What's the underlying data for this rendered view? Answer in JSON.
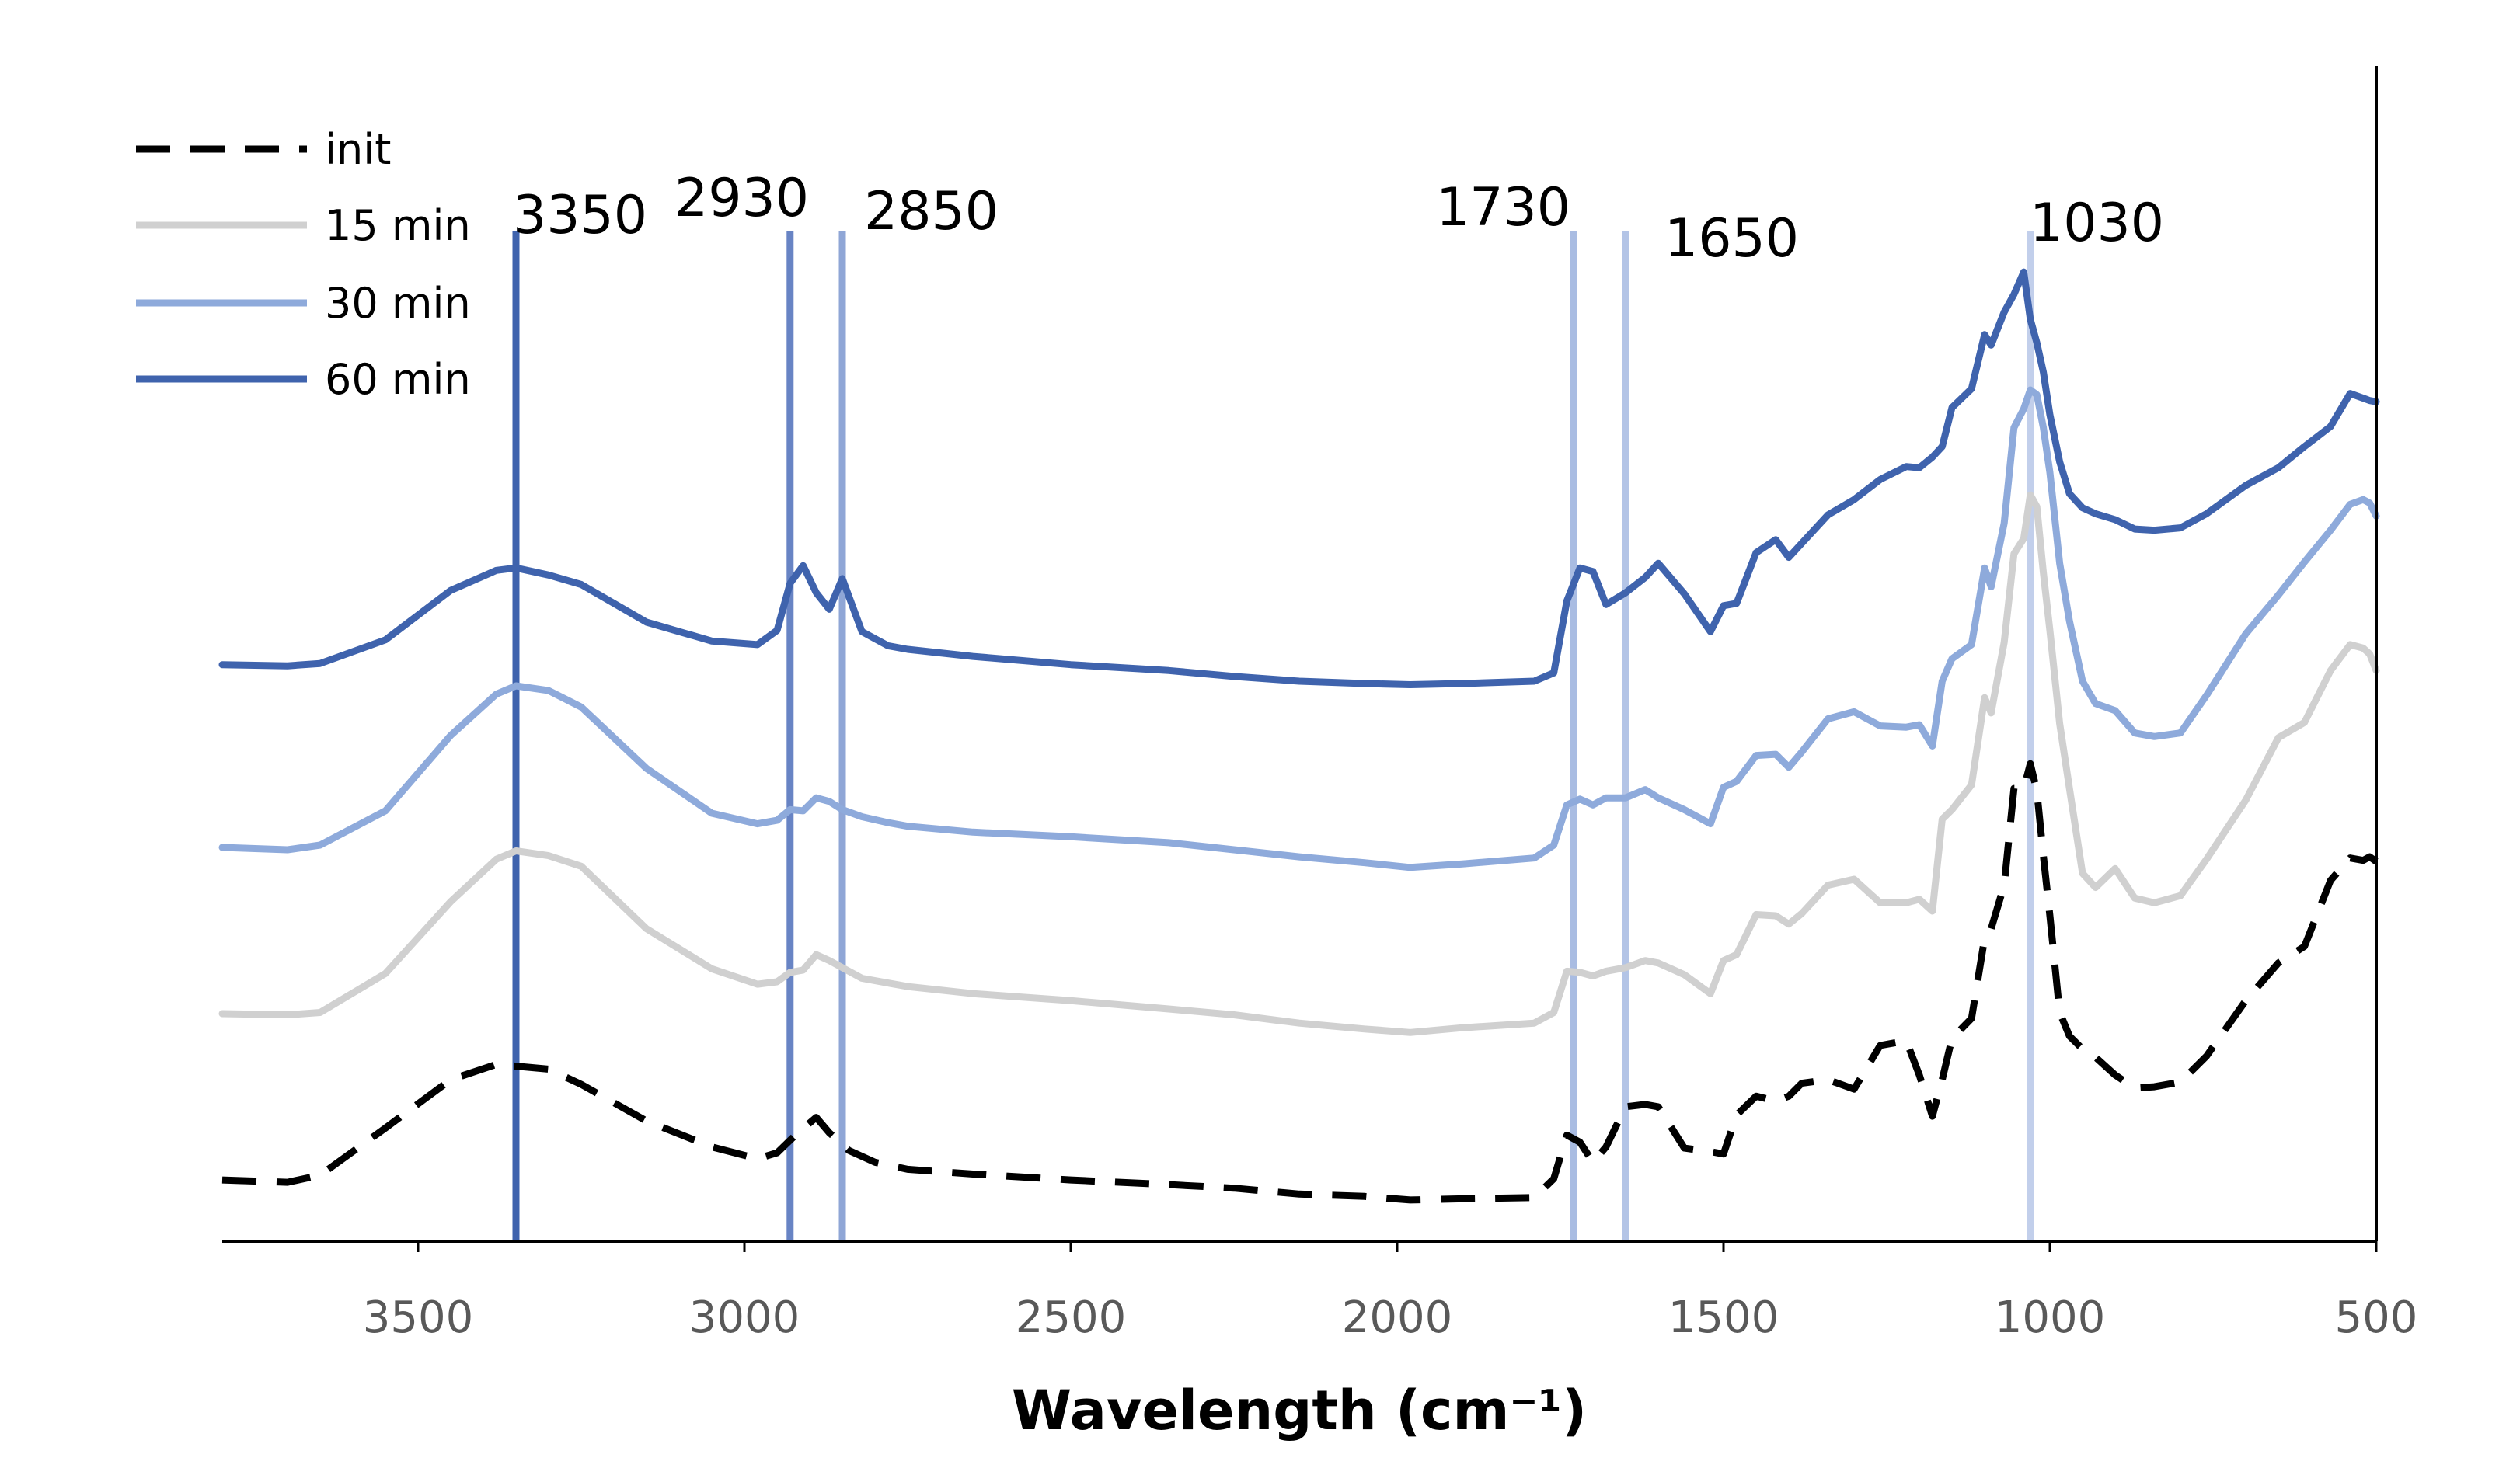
{
  "chart_data": {
    "type": "line",
    "title": "",
    "xlabel": "Wavelength (cm⁻¹)",
    "ylabel": "",
    "xlim": [
      3800,
      500
    ],
    "x_reversed": true,
    "ylim": [
      0,
      100
    ],
    "x_ticks": [
      3500,
      3000,
      2500,
      2000,
      1500,
      1000,
      500
    ],
    "x_tick_labels": [
      "3500",
      "3000",
      "2500",
      "2000",
      "1500",
      "1000",
      "500"
    ],
    "legend_position": "top-left",
    "colors": {
      "init": "#000000",
      "15 min": "#d0d0d0",
      "30 min": "#8eaadb",
      "60 min": "#3f63ad"
    },
    "series": [
      {
        "name": "init",
        "legend_label": "init",
        "style": "dashed",
        "color": "#000000",
        "x": [
          3800,
          3700,
          3650,
          3550,
          3450,
          3380,
          3300,
          3250,
          3150,
          3050,
          2980,
          2950,
          2920,
          2890,
          2870,
          2840,
          2800,
          2750,
          2650,
          2500,
          2350,
          2250,
          2150,
          2050,
          1980,
          1900,
          1790,
          1760,
          1740,
          1720,
          1700,
          1680,
          1650,
          1620,
          1600,
          1560,
          1520,
          1500,
          1480,
          1450,
          1420,
          1400,
          1380,
          1340,
          1300,
          1260,
          1220,
          1200,
          1180,
          1165,
          1150,
          1120,
          1100,
          1090,
          1070,
          1055,
          1040,
          1030,
          1020,
          1010,
          1000,
          985,
          970,
          950,
          930,
          900,
          870,
          840,
          800,
          760,
          700,
          650,
          610,
          570,
          540,
          520,
          510,
          500
        ],
        "values": [
          5.2,
          5.0,
          5.6,
          9.6,
          13.7,
          15.0,
          14.6,
          13.3,
          10.2,
          8.0,
          7.0,
          7.5,
          9.1,
          10.5,
          9.2,
          7.7,
          6.7,
          6.1,
          5.7,
          5.2,
          4.8,
          4.5,
          4.0,
          3.8,
          3.5,
          3.6,
          3.7,
          5.3,
          9.0,
          8.4,
          6.7,
          8.0,
          11.4,
          11.6,
          11.4,
          7.9,
          7.6,
          7.4,
          10.7,
          12.3,
          11.9,
          12.3,
          13.4,
          13.7,
          12.9,
          16.6,
          17.0,
          14.1,
          10.6,
          13.7,
          17.2,
          18.9,
          25.7,
          26.5,
          30.2,
          38.4,
          38.4,
          40.5,
          38.2,
          32.7,
          27.6,
          19.4,
          17.4,
          16.3,
          15.6,
          14.1,
          13.0,
          13.1,
          13.5,
          15.7,
          20.4,
          23.6,
          25.0,
          30.6,
          32.5,
          32.3,
          32.6,
          32.2
        ]
      },
      {
        "name": "15 min",
        "legend_label": "15 min",
        "style": "solid",
        "color": "#d0d0d0",
        "x": [
          3800,
          3700,
          3650,
          3550,
          3450,
          3380,
          3350,
          3300,
          3250,
          3150,
          3050,
          2980,
          2950,
          2930,
          2910,
          2890,
          2870,
          2850,
          2820,
          2780,
          2750,
          2650,
          2500,
          2350,
          2250,
          2150,
          2050,
          1980,
          1900,
          1790,
          1760,
          1740,
          1720,
          1700,
          1680,
          1650,
          1620,
          1600,
          1560,
          1520,
          1500,
          1480,
          1450,
          1420,
          1400,
          1380,
          1340,
          1300,
          1260,
          1220,
          1200,
          1180,
          1165,
          1150,
          1120,
          1100,
          1090,
          1070,
          1055,
          1040,
          1030,
          1020,
          1010,
          1000,
          985,
          970,
          950,
          930,
          900,
          870,
          840,
          800,
          760,
          700,
          650,
          610,
          570,
          540,
          520,
          510,
          500
        ],
        "values": [
          19.3,
          19.2,
          19.4,
          22.7,
          28.8,
          32.4,
          33.1,
          32.7,
          31.8,
          26.5,
          23.1,
          21.8,
          22.0,
          22.8,
          23.0,
          24.3,
          23.8,
          23.2,
          22.3,
          21.9,
          21.6,
          21.0,
          20.4,
          19.7,
          19.2,
          18.5,
          18.0,
          17.7,
          18.1,
          18.5,
          19.4,
          22.9,
          22.8,
          22.5,
          22.9,
          23.2,
          23.8,
          23.6,
          22.6,
          21.0,
          23.8,
          24.3,
          27.7,
          27.6,
          26.9,
          27.8,
          30.2,
          30.7,
          28.7,
          28.7,
          29.0,
          28.0,
          35.8,
          36.6,
          38.7,
          46.1,
          44.8,
          50.8,
          58.3,
          59.6,
          63.3,
          62.3,
          56.7,
          51.8,
          43.9,
          38.4,
          31.2,
          30.0,
          31.6,
          29.1,
          28.7,
          29.3,
          32.4,
          37.4,
          42.7,
          44.0,
          48.4,
          50.6,
          50.3,
          49.8,
          48.4
        ]
      },
      {
        "name": "30 min",
        "legend_label": "30 min",
        "style": "solid",
        "color": "#8eaadb",
        "x": [
          3800,
          3700,
          3650,
          3550,
          3450,
          3380,
          3350,
          3300,
          3250,
          3150,
          3050,
          2980,
          2950,
          2930,
          2910,
          2890,
          2870,
          2850,
          2820,
          2780,
          2750,
          2650,
          2500,
          2350,
          2250,
          2150,
          2050,
          1980,
          1900,
          1790,
          1760,
          1740,
          1720,
          1700,
          1680,
          1650,
          1620,
          1600,
          1560,
          1520,
          1500,
          1480,
          1450,
          1420,
          1400,
          1380,
          1340,
          1300,
          1260,
          1220,
          1200,
          1180,
          1165,
          1150,
          1120,
          1100,
          1090,
          1070,
          1055,
          1040,
          1030,
          1020,
          1010,
          1000,
          985,
          970,
          950,
          930,
          900,
          870,
          840,
          800,
          760,
          700,
          650,
          610,
          570,
          540,
          520,
          510,
          500
        ],
        "values": [
          33.4,
          33.2,
          33.6,
          36.5,
          42.9,
          46.4,
          47.1,
          46.7,
          45.3,
          40.1,
          36.3,
          35.4,
          35.7,
          36.6,
          36.5,
          37.6,
          37.3,
          36.6,
          36.0,
          35.5,
          35.2,
          34.7,
          34.3,
          33.8,
          33.2,
          32.6,
          32.1,
          31.7,
          32.0,
          32.5,
          33.6,
          37.0,
          37.5,
          37.0,
          37.6,
          37.6,
          38.3,
          37.6,
          36.6,
          35.4,
          38.5,
          39.0,
          41.2,
          41.3,
          40.2,
          41.5,
          44.3,
          44.9,
          43.7,
          43.6,
          43.8,
          42.0,
          47.5,
          49.4,
          50.6,
          57.1,
          55.5,
          60.9,
          69.0,
          70.6,
          72.2,
          71.8,
          69.0,
          65.2,
          57.5,
          52.6,
          47.5,
          45.6,
          45.0,
          43.1,
          42.8,
          43.1,
          46.3,
          51.5,
          54.8,
          57.6,
          60.3,
          62.5,
          62.9,
          62.6,
          61.5
        ]
      },
      {
        "name": "60 min",
        "legend_label": "60 min",
        "style": "solid",
        "color": "#3f63ad",
        "x": [
          3800,
          3700,
          3650,
          3550,
          3450,
          3380,
          3350,
          3300,
          3250,
          3150,
          3050,
          2980,
          2950,
          2930,
          2910,
          2890,
          2870,
          2850,
          2820,
          2780,
          2750,
          2650,
          2500,
          2350,
          2250,
          2150,
          2050,
          1980,
          1900,
          1790,
          1760,
          1740,
          1720,
          1700,
          1680,
          1650,
          1620,
          1600,
          1560,
          1520,
          1500,
          1480,
          1450,
          1420,
          1400,
          1380,
          1340,
          1300,
          1260,
          1220,
          1200,
          1180,
          1165,
          1150,
          1120,
          1100,
          1090,
          1070,
          1055,
          1040,
          1030,
          1020,
          1010,
          1000,
          985,
          970,
          950,
          930,
          900,
          870,
          840,
          800,
          760,
          700,
          650,
          610,
          570,
          540,
          520,
          510,
          500
        ],
        "values": [
          48.9,
          48.8,
          49.0,
          51.0,
          55.2,
          56.9,
          57.1,
          56.5,
          55.7,
          52.5,
          50.9,
          50.6,
          51.8,
          55.8,
          57.3,
          55.0,
          53.6,
          56.2,
          51.7,
          50.5,
          50.2,
          49.6,
          48.9,
          48.4,
          47.9,
          47.5,
          47.3,
          47.2,
          47.3,
          47.5,
          48.2,
          54.3,
          57.1,
          56.8,
          54.0,
          55.0,
          56.3,
          57.5,
          54.9,
          51.7,
          53.9,
          54.1,
          58.4,
          59.5,
          58.0,
          59.2,
          61.6,
          62.9,
          64.6,
          65.7,
          65.6,
          66.5,
          67.4,
          70.7,
          72.3,
          76.9,
          76.0,
          78.8,
          80.3,
          82.2,
          78.2,
          76.2,
          73.7,
          70.1,
          66.1,
          63.4,
          62.2,
          61.7,
          61.2,
          60.4,
          60.3,
          60.5,
          61.7,
          64.1,
          65.6,
          67.4,
          69.1,
          71.9,
          71.5,
          71.3,
          71.2
        ]
      }
    ],
    "peaks": [
      {
        "position": 3350,
        "label": "3350",
        "color": "#3f63ad"
      },
      {
        "position": 2930,
        "label": "2930",
        "color": "#6884c4"
      },
      {
        "position": 2850,
        "label": "2850",
        "color": "#8fa6d6"
      },
      {
        "position": 1730,
        "label": "1730",
        "color": "#a9bce2"
      },
      {
        "position": 1650,
        "label": "1650",
        "color": "#b3c4e6"
      },
      {
        "position": 1030,
        "label": "1030",
        "color": "#c2cfeb"
      }
    ]
  }
}
